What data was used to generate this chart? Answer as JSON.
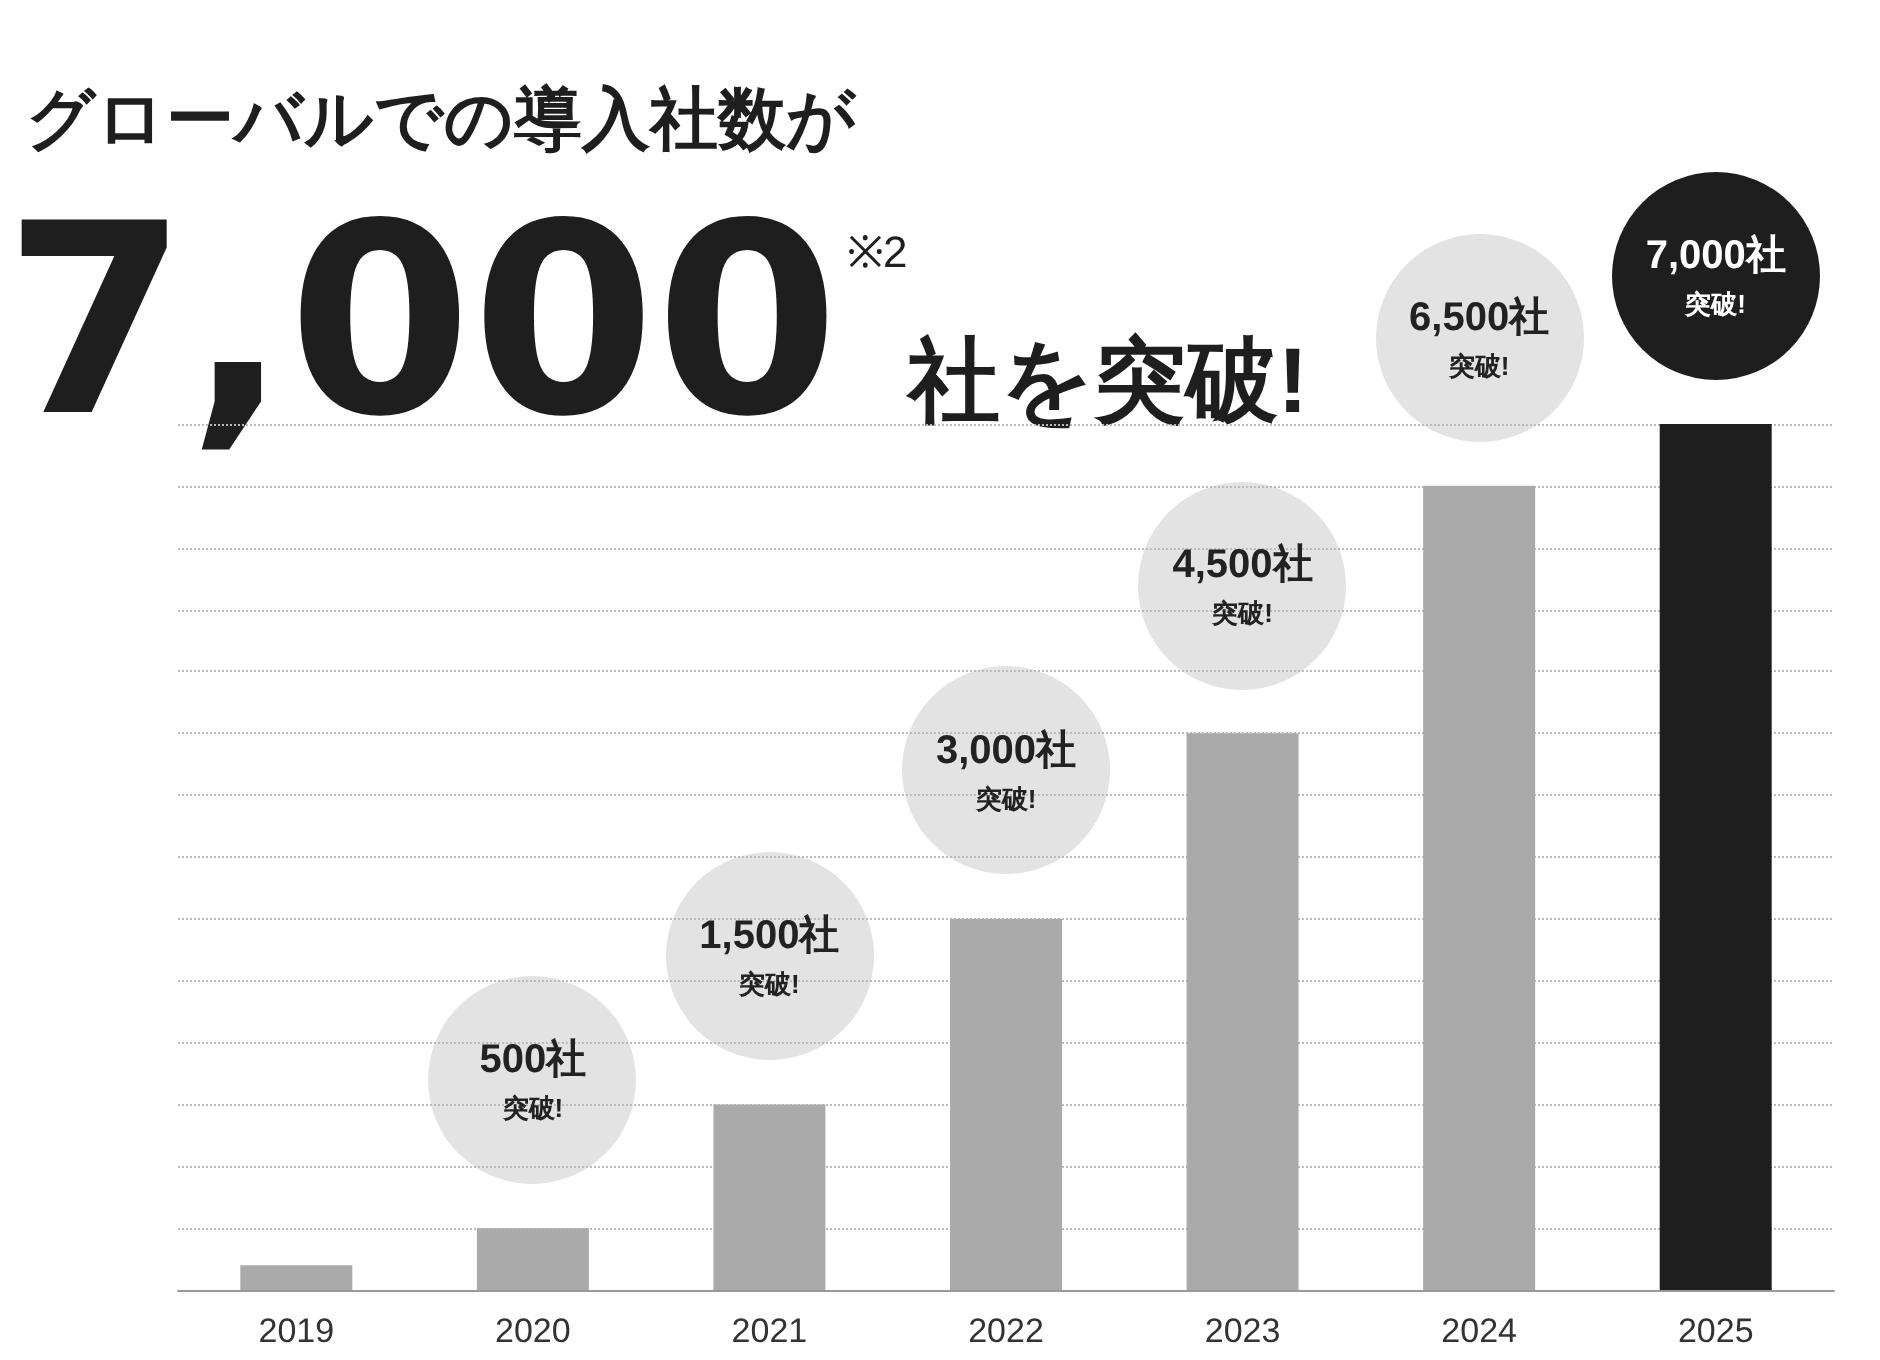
{
  "chart_data": {
    "type": "bar",
    "title": "グローバルでの導入社数が",
    "subtitle": "7,000$^{※2}$社を突破!",
    "categories": [
      "2019",
      "2020",
      "2021",
      "2022",
      "2023",
      "2024",
      "2025"
    ],
    "values": [
      200,
      500,
      1500,
      3000,
      4500,
      6500,
      7000
    ],
    "colors": [
      "#aaaaaa",
      "#aaaaaa",
      "#aaaaaa",
      "#aaaaaa",
      "#aaaaaa",
      "#aaaaaa",
      "#1e1e1e"
    ],
    "value_labels": [
      null,
      "500社突破!",
      "1,500社突破!",
      "3,000社突破!",
      "4,500社突破!",
      "6,500社突破!",
      "7,000社突破!"
    ],
    "grid": "y",
    "tick_labels": "x"
  }
}
